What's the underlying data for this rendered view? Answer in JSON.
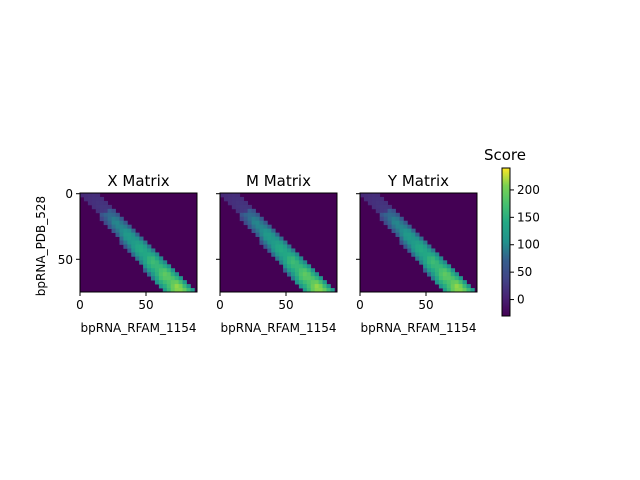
{
  "figure": {
    "colorbar_title": "Score",
    "colorbar_ticks": [
      0,
      50,
      100,
      150,
      200
    ],
    "colorbar_tick_labels": [
      "0",
      "50",
      "100",
      "150",
      "200"
    ]
  },
  "chart_data": [
    {
      "type": "heatmap",
      "title": "X Matrix",
      "xlabel": "bpRNA_RFAM_1154",
      "ylabel": "bpRNA_PDB_528",
      "x_ticks": [
        0,
        50
      ],
      "x_tick_labels": [
        "0",
        "50"
      ],
      "y_ticks": [
        0,
        50
      ],
      "y_tick_labels": [
        "0",
        "50"
      ],
      "xlim": [
        0,
        89
      ],
      "ylim": [
        75,
        0
      ],
      "colormap": "viridis",
      "vmin": -30,
      "vmax": 240,
      "band": {
        "x_left_end": 63,
        "x_right_start": 14,
        "peak_value": 240,
        "background_value": -30
      }
    },
    {
      "type": "heatmap",
      "title": "M Matrix",
      "xlabel": "bpRNA_RFAM_1154",
      "ylabel": "",
      "x_ticks": [
        0,
        50
      ],
      "x_tick_labels": [
        "0",
        "50"
      ],
      "y_ticks": [
        0,
        50
      ],
      "y_tick_labels": [
        "",
        ""
      ],
      "xlim": [
        0,
        89
      ],
      "ylim": [
        75,
        0
      ],
      "colormap": "viridis",
      "vmin": -30,
      "vmax": 240,
      "band": {
        "x_left_end": 63,
        "x_right_start": 14,
        "peak_value": 240,
        "background_value": -30
      }
    },
    {
      "type": "heatmap",
      "title": "Y Matrix",
      "xlabel": "bpRNA_RFAM_1154",
      "ylabel": "",
      "x_ticks": [
        0,
        50
      ],
      "x_tick_labels": [
        "0",
        "50"
      ],
      "y_ticks": [
        0,
        50
      ],
      "y_tick_labels": [
        "",
        ""
      ],
      "xlim": [
        0,
        89
      ],
      "ylim": [
        75,
        0
      ],
      "colormap": "viridis",
      "vmin": -30,
      "vmax": 240,
      "band": {
        "x_left_end": 63,
        "x_right_start": 14,
        "peak_value": 240,
        "background_value": -30
      }
    }
  ]
}
